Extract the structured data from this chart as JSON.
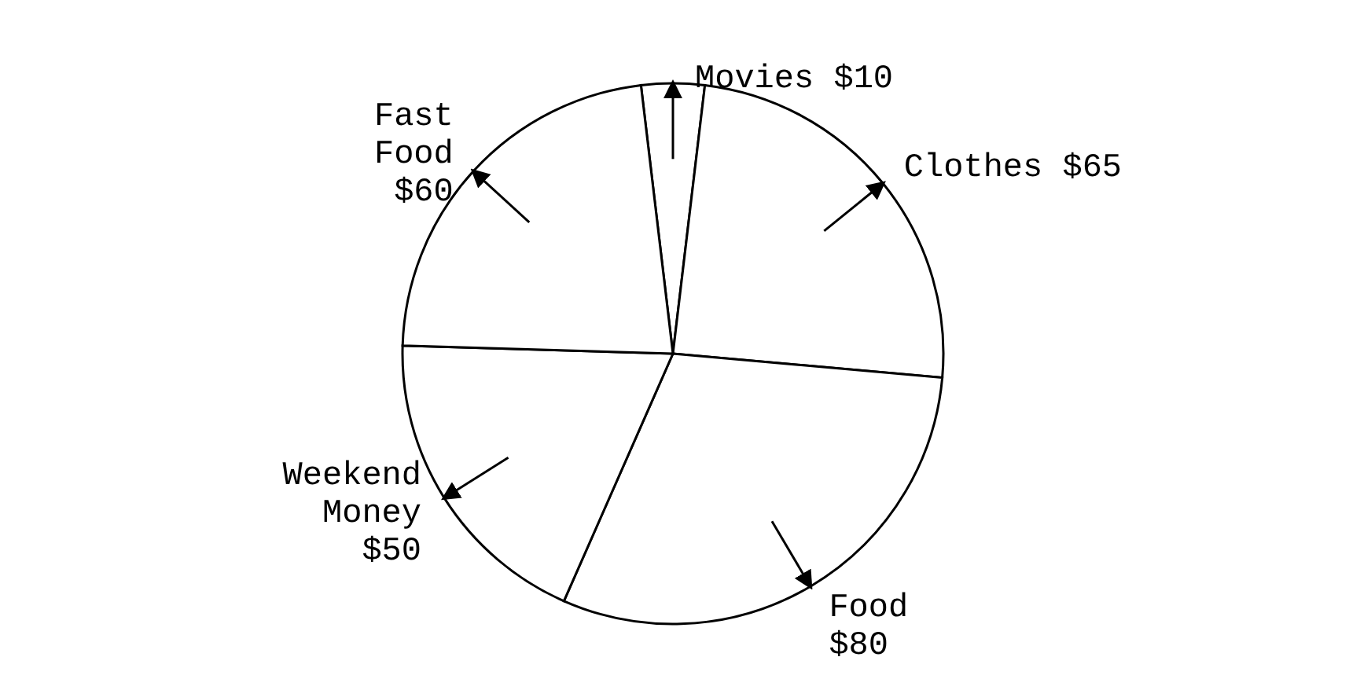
{
  "chart_data": {
    "type": "pie",
    "categories": [
      "Movies",
      "Clothes",
      "Food",
      "Weekend Money",
      "Fast Food"
    ],
    "values": [
      10,
      65,
      80,
      50,
      60
    ],
    "value_labels": [
      "$10",
      "$65",
      "$80",
      "$50",
      "$60"
    ],
    "colors": [
      "#ffffff",
      "#ffffff",
      "#ffffff",
      "#ffffff",
      "#ffffff"
    ],
    "legend": false
  }
}
